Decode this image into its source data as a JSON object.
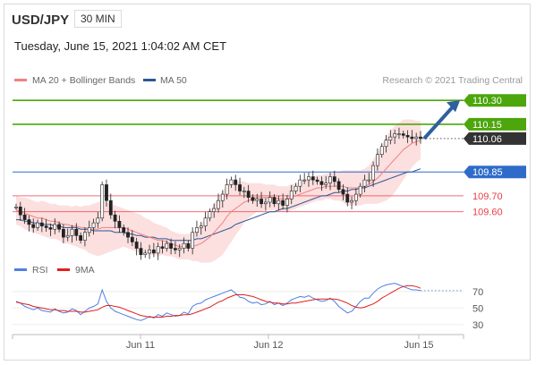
{
  "header": {
    "symbol": "USD/JPY",
    "period": "30 MIN",
    "datetime": "Tuesday, June 15, 2021 1:04:02 AM CET"
  },
  "colors": {
    "resistance": "#4ca60c",
    "last": "#333333",
    "support_main": "#2f6cc9",
    "support": "#e8404a",
    "candle": "#222222",
    "ma50": "#2b5797",
    "ma20": "#f08080",
    "band": "#fbd4d4",
    "rsi": "#4f7fe0",
    "rsi_ma": "#e02020",
    "arrow": "#2f5f9f"
  },
  "chart_data": [
    {
      "type": "candlestick",
      "legend": [
        {
          "label": "MA 20 + Bollinger Bands",
          "color": "#f08080"
        },
        {
          "label": "MA 50",
          "color": "#2b5797"
        }
      ],
      "credit": "Research © 2021 Trading Central",
      "x_ticks": [
        "Jun 11",
        "Jun 12",
        "Jun 15"
      ],
      "ylim": [
        109.3,
        110.38
      ],
      "levels": [
        {
          "value": 110.3,
          "label": "110.30",
          "kind": "resistance"
        },
        {
          "value": 110.15,
          "label": "110.15",
          "kind": "resistance"
        },
        {
          "value": 110.06,
          "label": "110.06",
          "kind": "last"
        },
        {
          "value": 109.85,
          "label": "109.85",
          "kind": "support_main"
        },
        {
          "value": 109.7,
          "label": "109.70",
          "kind": "support"
        },
        {
          "value": 109.6,
          "label": "109.60",
          "kind": "support"
        }
      ],
      "close": [
        109.63,
        109.58,
        109.55,
        109.52,
        109.5,
        109.53,
        109.51,
        109.5,
        109.49,
        109.52,
        109.49,
        109.44,
        109.45,
        109.49,
        109.45,
        109.42,
        109.47,
        109.5,
        109.53,
        109.56,
        109.77,
        109.67,
        109.58,
        109.54,
        109.5,
        109.47,
        109.44,
        109.41,
        109.37,
        109.33,
        109.34,
        109.36,
        109.34,
        109.38,
        109.37,
        109.4,
        109.37,
        109.36,
        109.37,
        109.4,
        109.37,
        109.47,
        109.5,
        109.51,
        109.56,
        109.6,
        109.62,
        109.67,
        109.71,
        109.77,
        109.8,
        109.77,
        109.73,
        109.73,
        109.69,
        109.67,
        109.68,
        109.65,
        109.66,
        109.69,
        109.65,
        109.67,
        109.64,
        109.68,
        109.73,
        109.76,
        109.8,
        109.8,
        109.82,
        109.8,
        109.79,
        109.77,
        109.78,
        109.82,
        109.79,
        109.74,
        109.71,
        109.66,
        109.67,
        109.71,
        109.76,
        109.8,
        109.8,
        109.89,
        109.96,
        110.01,
        110.05,
        110.07,
        110.09,
        110.09,
        110.08,
        110.07,
        110.06,
        110.07,
        110.06
      ],
      "ma20": [
        109.61,
        109.6,
        109.59,
        109.58,
        109.57,
        109.56,
        109.56,
        109.55,
        109.54,
        109.54,
        109.53,
        109.52,
        109.52,
        109.51,
        109.51,
        109.5,
        109.5,
        109.49,
        109.49,
        109.49,
        109.5,
        109.5,
        109.5,
        109.5,
        109.5,
        109.5,
        109.49,
        109.48,
        109.47,
        109.46,
        109.45,
        109.44,
        109.43,
        109.42,
        109.42,
        109.41,
        109.4,
        109.39,
        109.38,
        109.38,
        109.38,
        109.38,
        109.39,
        109.4,
        109.42,
        109.44,
        109.47,
        109.5,
        109.53,
        109.57,
        109.6,
        109.62,
        109.64,
        109.66,
        109.67,
        109.68,
        109.69,
        109.69,
        109.69,
        109.69,
        109.69,
        109.68,
        109.68,
        109.68,
        109.69,
        109.7,
        109.71,
        109.72,
        109.73,
        109.74,
        109.75,
        109.75,
        109.76,
        109.76,
        109.76,
        109.76,
        109.76,
        109.75,
        109.75,
        109.75,
        109.75,
        109.76,
        109.77,
        109.79,
        109.81,
        109.84,
        109.87,
        109.9,
        109.93,
        109.96,
        109.99,
        110.01,
        110.03,
        110.04,
        110.05
      ],
      "ma50": [
        109.55,
        109.55,
        109.54,
        109.54,
        109.53,
        109.53,
        109.52,
        109.52,
        109.52,
        109.51,
        109.51,
        109.5,
        109.5,
        109.5,
        109.5,
        109.49,
        109.49,
        109.49,
        109.48,
        109.48,
        109.48,
        109.48,
        109.48,
        109.47,
        109.47,
        109.47,
        109.46,
        109.46,
        109.45,
        109.45,
        109.44,
        109.44,
        109.44,
        109.43,
        109.43,
        109.43,
        109.42,
        109.42,
        109.42,
        109.42,
        109.42,
        109.42,
        109.43,
        109.43,
        109.44,
        109.45,
        109.46,
        109.47,
        109.48,
        109.49,
        109.5,
        109.52,
        109.53,
        109.54,
        109.55,
        109.56,
        109.57,
        109.58,
        109.59,
        109.6,
        109.6,
        109.61,
        109.62,
        109.62,
        109.63,
        109.64,
        109.65,
        109.66,
        109.67,
        109.68,
        109.69,
        109.7,
        109.7,
        109.71,
        109.72,
        109.72,
        109.73,
        109.73,
        109.74,
        109.74,
        109.75,
        109.75,
        109.76,
        109.77,
        109.78,
        109.79,
        109.8,
        109.81,
        109.82,
        109.83,
        109.84,
        109.85,
        109.85,
        109.86,
        109.87
      ],
      "band_width": [
        0.09,
        0.09,
        0.1,
        0.1,
        0.1,
        0.1,
        0.11,
        0.11,
        0.11,
        0.11,
        0.11,
        0.12,
        0.12,
        0.12,
        0.13,
        0.13,
        0.14,
        0.15,
        0.16,
        0.17,
        0.17,
        0.16,
        0.15,
        0.14,
        0.13,
        0.12,
        0.12,
        0.12,
        0.12,
        0.12,
        0.11,
        0.11,
        0.1,
        0.1,
        0.09,
        0.09,
        0.08,
        0.08,
        0.08,
        0.08,
        0.08,
        0.09,
        0.1,
        0.12,
        0.14,
        0.16,
        0.18,
        0.19,
        0.2,
        0.2,
        0.19,
        0.17,
        0.15,
        0.13,
        0.11,
        0.1,
        0.09,
        0.09,
        0.08,
        0.08,
        0.08,
        0.08,
        0.08,
        0.08,
        0.08,
        0.08,
        0.08,
        0.08,
        0.08,
        0.08,
        0.08,
        0.08,
        0.08,
        0.08,
        0.09,
        0.09,
        0.1,
        0.11,
        0.11,
        0.11,
        0.11,
        0.11,
        0.12,
        0.14,
        0.16,
        0.18,
        0.2,
        0.21,
        0.21,
        0.2,
        0.19,
        0.17,
        0.15,
        0.13,
        0.12
      ]
    },
    {
      "type": "line",
      "legend": [
        {
          "label": "RSI",
          "color": "#4f7fe0"
        },
        {
          "label": "9MA",
          "color": "#e02020"
        }
      ],
      "y_ticks": [
        30,
        50,
        70
      ],
      "ylim": [
        20,
        85
      ],
      "rsi": [
        58,
        56,
        52,
        50,
        48,
        50,
        47,
        46,
        45,
        49,
        46,
        44,
        45,
        49,
        47,
        42,
        46,
        50,
        52,
        55,
        72,
        58,
        50,
        46,
        44,
        42,
        40,
        38,
        36,
        35,
        37,
        40,
        38,
        42,
        40,
        44,
        42,
        40,
        41,
        45,
        43,
        52,
        55,
        56,
        60,
        62,
        64,
        66,
        68,
        70,
        72,
        68,
        63,
        62,
        58,
        56,
        57,
        54,
        55,
        58,
        54,
        56,
        53,
        56,
        60,
        62,
        64,
        63,
        65,
        62,
        60,
        58,
        59,
        62,
        58,
        52,
        48,
        44,
        46,
        52,
        58,
        62,
        62,
        68,
        73,
        76,
        78,
        79,
        80,
        78,
        76,
        74,
        72,
        72,
        71
      ],
      "rsi_ma": [
        57,
        56,
        55,
        54,
        52,
        51,
        50,
        49,
        48,
        48,
        47,
        47,
        46,
        46,
        46,
        45,
        45,
        46,
        47,
        48,
        51,
        53,
        53,
        52,
        51,
        49,
        47,
        45,
        43,
        41,
        40,
        39,
        39,
        39,
        39,
        40,
        40,
        41,
        41,
        42,
        42,
        43,
        45,
        47,
        49,
        51,
        54,
        57,
        59,
        62,
        64,
        66,
        66,
        66,
        65,
        64,
        62,
        60,
        58,
        57,
        56,
        56,
        55,
        55,
        56,
        56,
        57,
        58,
        59,
        60,
        61,
        61,
        61,
        61,
        61,
        60,
        58,
        56,
        53,
        51,
        50,
        51,
        53,
        55,
        58,
        62,
        65,
        68,
        71,
        74,
        76,
        77,
        77,
        76,
        74
      ]
    }
  ]
}
